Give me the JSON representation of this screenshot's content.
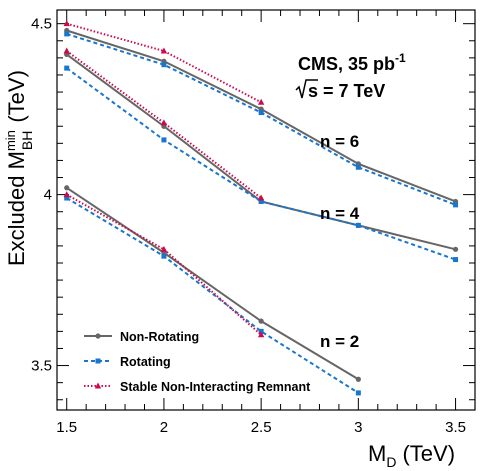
{
  "chart_data": {
    "type": "line",
    "xlabel": "M",
    "xlabel_sub": "D",
    "xlabel_unit": "(TeV)",
    "ylabel": "Excluded M",
    "ylabel_sup": "min",
    "ylabel_sub": "BH",
    "ylabel_unit": "(TeV)",
    "xlim": [
      1.45,
      3.6
    ],
    "ylim": [
      3.37,
      4.54
    ],
    "x_ticks": [
      "1.5",
      "2",
      "2.5",
      "3",
      "3.5"
    ],
    "y_ticks": [
      "3.5",
      "4",
      "4.5"
    ],
    "experiment_label": "CMS, 35 pb",
    "experiment_label_sup": "-1",
    "energy_label": "s = 7 TeV",
    "annotations": [
      "n = 6",
      "n = 4",
      "n = 2"
    ],
    "legend_position": "bottom-left",
    "series": [
      {
        "name": "Non-Rotating",
        "color": "#666666",
        "style": "solid",
        "marker": "circle",
        "groups": [
          {
            "n": 6,
            "x": [
              1.5,
              2,
              2.5,
              3,
              3.5
            ],
            "y": [
              4.48,
              4.39,
              4.25,
              4.09,
              3.98
            ]
          },
          {
            "n": 4,
            "x": [
              1.5,
              2,
              2.5,
              3,
              3.5
            ],
            "y": [
              4.41,
              4.2,
              3.98,
              3.91,
              3.84
            ]
          },
          {
            "n": 2,
            "x": [
              1.5,
              2,
              2.5,
              3
            ],
            "y": [
              4.02,
              3.83,
              3.63,
              3.46
            ]
          }
        ]
      },
      {
        "name": "Rotating",
        "color": "#1a75cc",
        "style": "dashed",
        "marker": "square",
        "groups": [
          {
            "n": 6,
            "x": [
              1.5,
              2,
              2.5,
              3,
              3.5
            ],
            "y": [
              4.47,
              4.38,
              4.24,
              4.08,
              3.97
            ]
          },
          {
            "n": 4,
            "x": [
              1.5,
              2,
              2.5,
              3,
              3.5
            ],
            "y": [
              4.37,
              4.16,
              3.98,
              3.91,
              3.81
            ]
          },
          {
            "n": 2,
            "x": [
              1.5,
              2,
              2.5,
              3
            ],
            "y": [
              3.99,
              3.82,
              3.6,
              3.42
            ]
          }
        ]
      },
      {
        "name": "Stable Non-Interacting Remnant",
        "color": "#cc0a4f",
        "style": "dotted",
        "marker": "triangle",
        "groups": [
          {
            "n": 6,
            "x": [
              1.5,
              2,
              2.5
            ],
            "y": [
              4.5,
              4.42,
              4.27
            ]
          },
          {
            "n": 4,
            "x": [
              1.5,
              2,
              2.5
            ],
            "y": [
              4.42,
              4.21,
              3.99
            ]
          },
          {
            "n": 2,
            "x": [
              1.5,
              2,
              2.5
            ],
            "y": [
              4.0,
              3.84,
              3.59
            ]
          }
        ]
      }
    ]
  }
}
